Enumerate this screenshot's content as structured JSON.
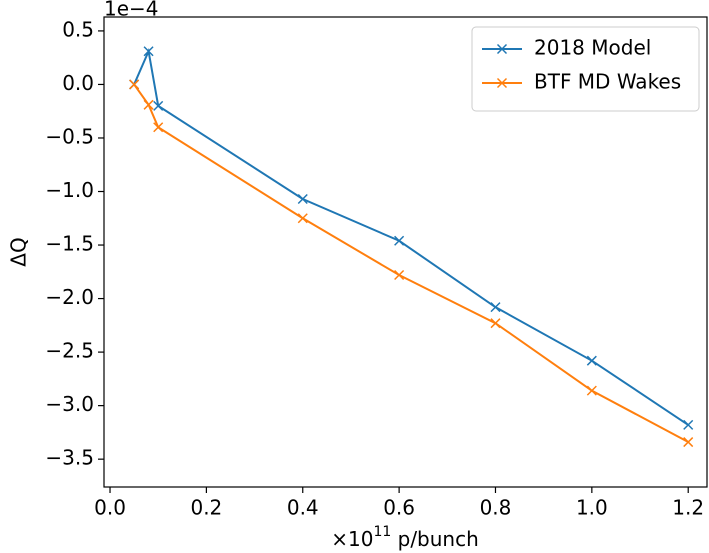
{
  "chart_data": {
    "type": "line",
    "y_offset_label": "1e−4",
    "ylabel": "ΔQ",
    "xlabel": {
      "base": "×10",
      "exponent": "11",
      "text": " p/bunch"
    },
    "x": [
      0.05,
      0.08,
      0.1,
      0.4,
      0.6,
      0.8,
      1.0,
      1.2
    ],
    "series": [
      {
        "name": "2018 Model",
        "color": "#1f77b4",
        "values": [
          0.0,
          0.31,
          -0.2,
          -1.07,
          -1.46,
          -2.08,
          -2.58,
          -3.18
        ]
      },
      {
        "name": "BTF MD Wakes",
        "color": "#ff7f0e",
        "values": [
          0.0,
          -0.19,
          -0.4,
          -1.25,
          -1.78,
          -2.23,
          -2.86,
          -3.34
        ]
      }
    ],
    "marker": "x",
    "xlim": [
      -0.0125,
      1.239
    ],
    "ylim": [
      -3.76,
      0.63
    ],
    "xticks": [
      {
        "value": 0,
        "label": "0.0"
      },
      0.2,
      0.4,
      0.6,
      0.8,
      {
        "value": 1,
        "label": "1.0"
      },
      1.2
    ],
    "yticks": [
      0.5,
      {
        "value": 0,
        "label": "0.0"
      },
      {
        "value": -0.5,
        "label": "−0.5"
      },
      {
        "value": -1,
        "label": "−1.0"
      },
      {
        "value": -1.5,
        "label": "−1.5"
      },
      {
        "value": -2,
        "label": "−2.0"
      },
      {
        "value": -2.5,
        "label": "−2.5"
      },
      {
        "value": -3,
        "label": "−3.0"
      },
      {
        "value": -3.5,
        "label": "−3.5"
      }
    ],
    "grid": false,
    "legend": "upper right"
  }
}
